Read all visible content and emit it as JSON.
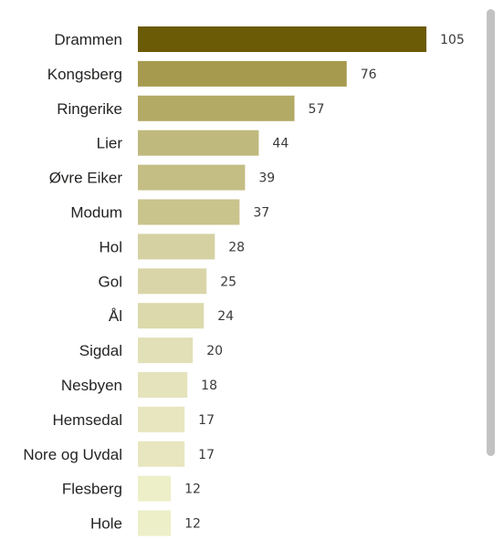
{
  "chart_data": {
    "type": "bar",
    "orientation": "horizontal",
    "categories": [
      "Drammen",
      "Kongsberg",
      "Ringerike",
      "Lier",
      "Øvre Eiker",
      "Modum",
      "Hol",
      "Gol",
      "Ål",
      "Sigdal",
      "Nesbyen",
      "Hemsedal",
      "Nore og Uvdal",
      "Flesberg",
      "Hole"
    ],
    "values": [
      105,
      76,
      57,
      44,
      39,
      37,
      28,
      25,
      24,
      20,
      18,
      17,
      17,
      12,
      12
    ],
    "colors": [
      "#6b5a06",
      "#a69a4f",
      "#b3aa66",
      "#c0b97e",
      "#c4bd84",
      "#c9c38c",
      "#d5d1a2",
      "#d9d5a8",
      "#dcd9ac",
      "#e2e0b7",
      "#e5e3bb",
      "#e7e6bf",
      "#e7e6bf",
      "#edefc8",
      "#edefc8"
    ],
    "title": "",
    "xlabel": "",
    "ylabel": "",
    "xlim": [
      0,
      105
    ],
    "grid": false,
    "legend": "none",
    "data_labels": true
  }
}
